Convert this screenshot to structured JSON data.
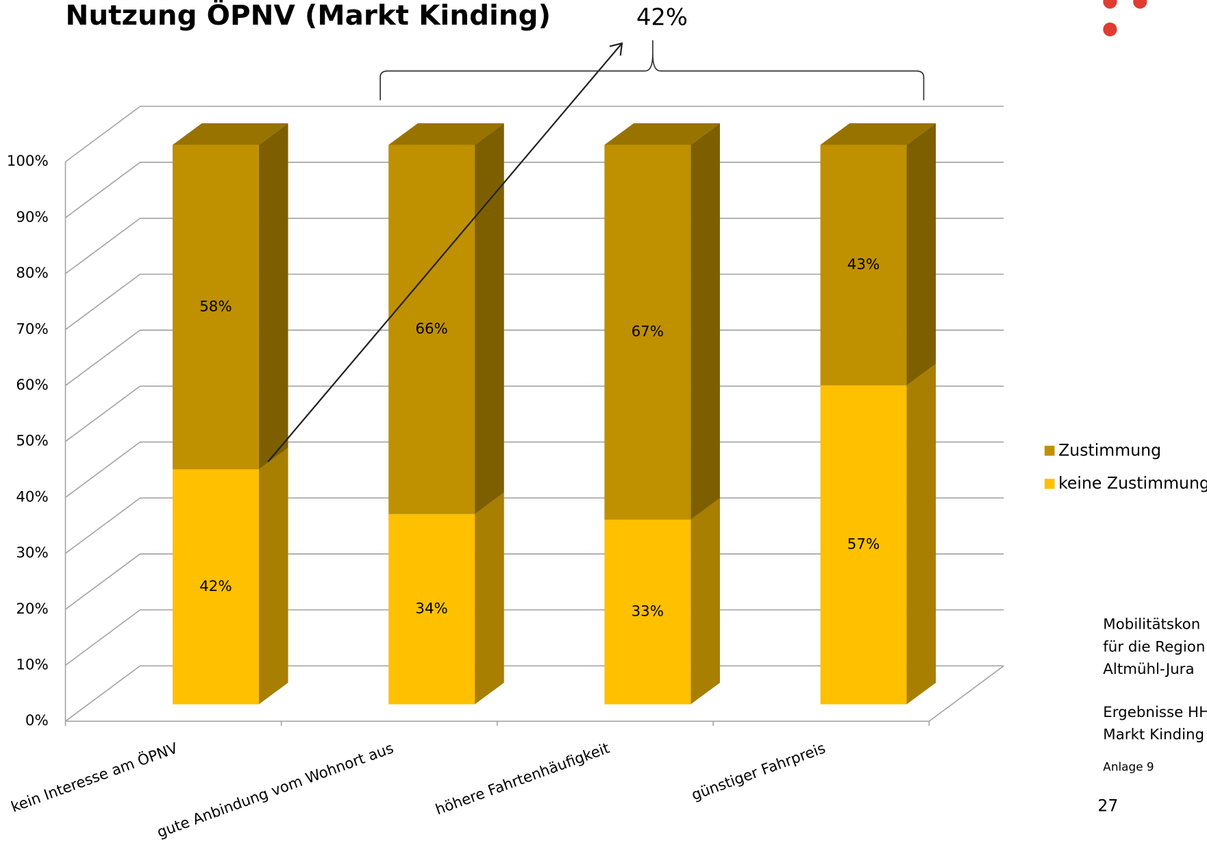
{
  "chart_data": {
    "type": "stacked-bar-3d",
    "title": "Nutzung ÖPNV (Markt Kinding)",
    "annotation": "42%",
    "categories": [
      "kein Interesse am ÖPNV",
      "gute Anbindung vom Wohnort aus",
      "höhere Fahrtenhäufigkeit",
      "günstiger Fahrpreis"
    ],
    "series": [
      {
        "name": "keine Zustimmung",
        "color": "#ffc000",
        "values": [
          42,
          34,
          33,
          57
        ],
        "value_labels": [
          "42%",
          "34%",
          "33%",
          "57%"
        ]
      },
      {
        "name": "Zustimmung",
        "color": "#bf9000",
        "values": [
          58,
          66,
          67,
          43
        ],
        "value_labels": [
          "58%",
          "66%",
          "67%",
          "43%"
        ]
      }
    ],
    "ylim": [
      0,
      100
    ],
    "yticks": [
      {
        "value": 0,
        "label": "0%"
      },
      {
        "value": 10,
        "label": "10%"
      },
      {
        "value": 20,
        "label": "20%"
      },
      {
        "value": 30,
        "label": "30%"
      },
      {
        "value": 40,
        "label": "40%"
      },
      {
        "value": 50,
        "label": "50%"
      },
      {
        "value": 60,
        "label": "60%"
      },
      {
        "value": 70,
        "label": "70%"
      },
      {
        "value": 80,
        "label": "80%"
      },
      {
        "value": 90,
        "label": "90%"
      },
      {
        "value": 100,
        "label": "100%"
      }
    ],
    "grid": true,
    "legend": "right"
  },
  "slide": {
    "side_text": [
      "Mobilitätskon",
      "für die Region",
      "Altmühl-Jura"
    ],
    "side_text2": [
      "Ergebnisse HH",
      "Markt Kinding"
    ],
    "note": "Anlage 9",
    "page_number": "27"
  }
}
